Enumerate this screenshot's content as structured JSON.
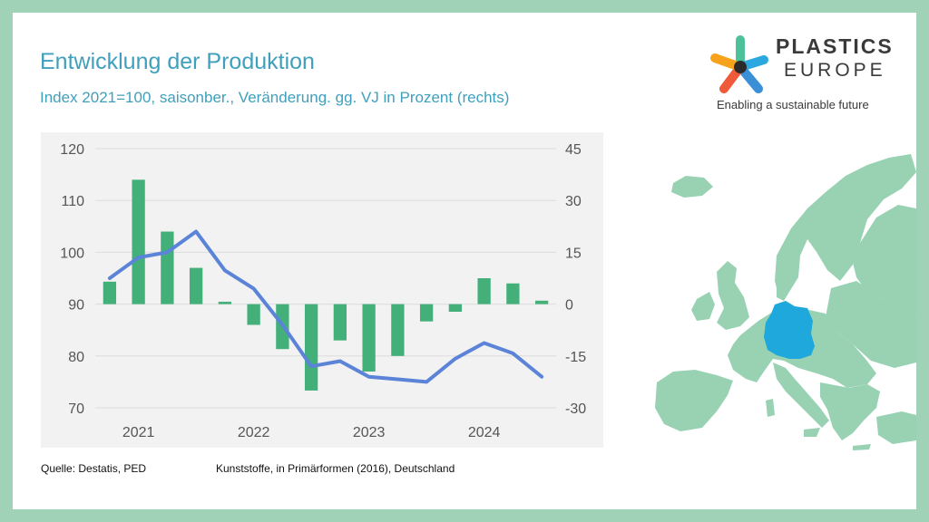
{
  "slide": {
    "title": "Entwicklung der Produktion",
    "subtitle": "Index 2021=100, saisonber., Veränderung. gg. VJ in Prozent (rechts)",
    "source": "Quelle: Destatis, PED",
    "description": "Kunststoffe, in Primärformen (2016), Deutschland"
  },
  "logo": {
    "line1": "PLASTICS",
    "line2": "EUROPE",
    "tagline": "Enabling a sustainable future",
    "icon": "star-burst-icon"
  },
  "map": {
    "icon": "europe-map-icon",
    "highlight": "Germany",
    "base_color": "#98d2b3",
    "highlight_color": "#1ea8dc"
  },
  "chart_data": {
    "type": "bar+line",
    "categories": [
      "2021-Q1",
      "2021-Q2",
      "2021-Q3",
      "2021-Q4",
      "2022-Q1",
      "2022-Q2",
      "2022-Q3",
      "2022-Q4",
      "2023-Q1",
      "2023-Q2",
      "2023-Q3",
      "2023-Q4",
      "2024-Q1",
      "2024-Q2",
      "2024-Q3",
      "2024-Q4"
    ],
    "x_tick_labels": [
      "2021",
      "2022",
      "2023",
      "2024"
    ],
    "series": [
      {
        "type": "bar",
        "axis": "right",
        "color": "#43b07a",
        "values": [
          6.5,
          36,
          21,
          10.5,
          0.7,
          -6,
          -13,
          -25,
          -10.5,
          -19.5,
          -15,
          -5,
          -2.2,
          7.5,
          6,
          1
        ]
      },
      {
        "type": "line",
        "axis": "left",
        "color": "#5b83d8",
        "values": [
          95,
          99,
          100,
          104,
          96.5,
          93,
          86,
          78,
          79,
          76,
          75.5,
          75,
          79.5,
          82.5,
          80.5,
          76
        ]
      }
    ],
    "ylim_left": [
      70,
      120
    ],
    "yticks_left": [
      70,
      80,
      90,
      100,
      110,
      120
    ],
    "ylim_right": [
      -30,
      45
    ],
    "yticks_right": [
      -30,
      -15,
      0,
      15,
      30,
      45
    ],
    "grid": true,
    "legend": "none",
    "colors": {
      "bar": "#43b07a",
      "line": "#5b83d8",
      "grid": "#dcdcdc",
      "background": "#f2f2f2"
    }
  }
}
